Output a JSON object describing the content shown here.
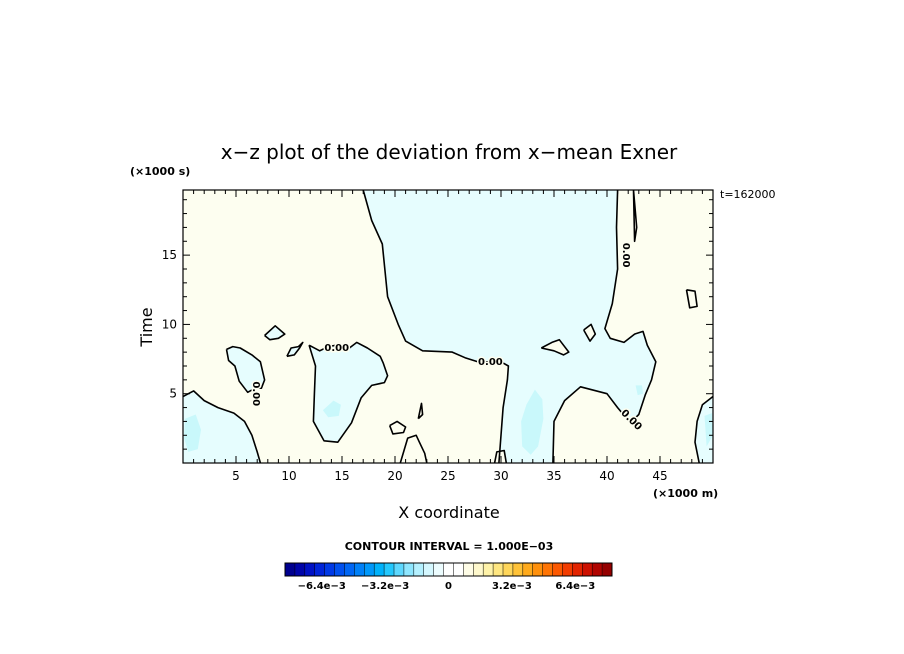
{
  "chart_data": {
    "type": "contour",
    "title": "x−z plot of the deviation from x−mean Exner",
    "xlabel": "X coordinate",
    "ylabel": "Time",
    "x_unit": "(×1000 m)",
    "y_unit": "(×1000 s)",
    "time_annotation": "t=162000",
    "contour_interval_text": "CONTOUR INTERVAL = 1.000E−03",
    "xlim": [
      0,
      50
    ],
    "ylim": [
      0,
      19.7
    ],
    "x_ticks": [
      5,
      10,
      15,
      20,
      25,
      30,
      35,
      40,
      45
    ],
    "x_tick_labels": [
      "5",
      "10",
      "15",
      "20",
      "25",
      "30",
      "35",
      "40",
      "45"
    ],
    "y_ticks": [
      5,
      10,
      15
    ],
    "y_tick_labels": [
      "5",
      "10",
      "15"
    ],
    "contour_labels": [
      {
        "text": "0.00",
        "x": 14.5,
        "y": 8.3,
        "rotate": 0
      },
      {
        "text": "0.00",
        "x": 29.0,
        "y": 7.3,
        "rotate": 0
      },
      {
        "text": "0.00",
        "x": 6.9,
        "y": 5.0,
        "rotate": 90
      },
      {
        "text": "0.00",
        "x": 41.8,
        "y": 15.0,
        "rotate": 90
      },
      {
        "text": "0.00",
        "x": 42.3,
        "y": 3.1,
        "rotate": 45
      }
    ],
    "zero_contours": [
      [
        [
          17.0,
          19.7
        ],
        [
          17.8,
          17.5
        ],
        [
          18.8,
          15.8
        ],
        [
          19.3,
          12.0
        ],
        [
          20.3,
          10.0
        ],
        [
          21.0,
          8.8
        ],
        [
          22.6,
          8.1
        ],
        [
          25.4,
          8.0
        ],
        [
          26.6,
          7.6
        ],
        [
          27.8,
          7.3
        ],
        [
          30.0,
          7.3
        ],
        [
          30.7,
          7.0
        ],
        [
          30.6,
          6.0
        ],
        [
          30.2,
          4.0
        ],
        [
          29.8,
          0
        ]
      ],
      [
        [
          41.0,
          19.7
        ],
        [
          40.9,
          17.0
        ],
        [
          41.0,
          14.0
        ],
        [
          40.5,
          11.5
        ],
        [
          39.8,
          9.7
        ],
        [
          40.3,
          9.0
        ],
        [
          41.6,
          8.7
        ],
        [
          42.6,
          9.3
        ],
        [
          43.4,
          9.5
        ],
        [
          43.8,
          8.5
        ],
        [
          44.6,
          7.3
        ],
        [
          44.2,
          6.0
        ],
        [
          43.6,
          4.9
        ],
        [
          43.0,
          3.5
        ],
        [
          42.2,
          2.9
        ],
        [
          41.0,
          4.0
        ],
        [
          40.0,
          5.0
        ],
        [
          37.5,
          5.5
        ],
        [
          36.0,
          4.5
        ],
        [
          35.0,
          3.0
        ],
        [
          34.9,
          0
        ]
      ],
      [
        [
          0,
          4.8
        ],
        [
          1.0,
          5.2
        ],
        [
          2.0,
          4.5
        ],
        [
          3.3,
          4.0
        ],
        [
          4.8,
          3.6
        ],
        [
          5.8,
          3.0
        ],
        [
          6.5,
          2.0
        ],
        [
          7.0,
          0.8
        ],
        [
          7.3,
          0
        ]
      ],
      [
        [
          4.1,
          8.2
        ],
        [
          4.3,
          7.4
        ],
        [
          4.9,
          7.0
        ],
        [
          5.3,
          5.9
        ],
        [
          6.1,
          5.1
        ],
        [
          6.8,
          5.4
        ],
        [
          7.4,
          5.4
        ],
        [
          7.7,
          6.0
        ],
        [
          7.3,
          7.3
        ],
        [
          6.5,
          7.8
        ],
        [
          5.4,
          8.3
        ],
        [
          4.7,
          8.4
        ],
        [
          4.1,
          8.2
        ]
      ],
      [
        [
          11.9,
          8.5
        ],
        [
          12.5,
          7.0
        ],
        [
          12.4,
          5.0
        ],
        [
          12.3,
          3.0
        ],
        [
          13.3,
          1.6
        ],
        [
          14.6,
          1.5
        ],
        [
          15.9,
          2.9
        ],
        [
          16.8,
          4.7
        ],
        [
          17.8,
          5.6
        ],
        [
          19.0,
          5.8
        ],
        [
          19.3,
          6.3
        ],
        [
          18.9,
          7.2
        ],
        [
          18.6,
          7.7
        ],
        [
          17.4,
          8.3
        ],
        [
          16.4,
          8.7
        ],
        [
          15.7,
          8.3
        ],
        [
          14.5,
          8.5
        ],
        [
          13.7,
          8.4
        ],
        [
          12.9,
          8.1
        ],
        [
          11.9,
          8.5
        ]
      ],
      [
        [
          9.8,
          7.7
        ],
        [
          10.5,
          7.8
        ],
        [
          11.0,
          8.3
        ],
        [
          11.3,
          8.7
        ],
        [
          10.9,
          8.4
        ],
        [
          10.2,
          8.3
        ],
        [
          9.8,
          7.7
        ]
      ],
      [
        [
          7.7,
          9.2
        ],
        [
          8.7,
          9.9
        ],
        [
          9.6,
          9.3
        ],
        [
          9.0,
          9.0
        ],
        [
          8.2,
          8.9
        ],
        [
          7.7,
          9.2
        ]
      ],
      [
        [
          20.5,
          0
        ],
        [
          21.2,
          1.8
        ],
        [
          22.0,
          2.0
        ],
        [
          22.3,
          1.5
        ],
        [
          22.8,
          0.7
        ],
        [
          23.0,
          0
        ]
      ],
      [
        [
          19.5,
          2.7
        ],
        [
          20.2,
          3.0
        ],
        [
          21.0,
          2.6
        ],
        [
          20.8,
          2.2
        ],
        [
          19.8,
          2.1
        ],
        [
          19.5,
          2.7
        ]
      ],
      [
        [
          22.2,
          3.2
        ],
        [
          22.5,
          4.3
        ],
        [
          22.6,
          3.5
        ],
        [
          22.2,
          3.2
        ]
      ],
      [
        [
          42.5,
          19.7
        ],
        [
          42.8,
          17.0
        ],
        [
          42.6,
          16.0
        ],
        [
          42.5,
          19.7
        ]
      ],
      [
        [
          47.5,
          12.5
        ],
        [
          48.3,
          12.4
        ],
        [
          48.5,
          11.3
        ],
        [
          47.8,
          11.2
        ],
        [
          47.5,
          12.5
        ]
      ],
      [
        [
          37.8,
          9.6
        ],
        [
          38.5,
          10.0
        ],
        [
          38.9,
          9.3
        ],
        [
          38.4,
          8.8
        ],
        [
          37.8,
          9.6
        ]
      ],
      [
        [
          33.8,
          8.3
        ],
        [
          34.8,
          8.7
        ],
        [
          35.5,
          8.9
        ],
        [
          36.4,
          8.0
        ],
        [
          35.9,
          7.8
        ],
        [
          35.0,
          8.1
        ],
        [
          33.8,
          8.3
        ]
      ],
      [
        [
          29.4,
          0
        ],
        [
          29.6,
          0.8
        ],
        [
          30.3,
          0.9
        ],
        [
          30.5,
          0
        ]
      ],
      [
        [
          50,
          4.8
        ],
        [
          49.0,
          4.2
        ],
        [
          48.5,
          3.0
        ],
        [
          48.3,
          1.5
        ],
        [
          48.7,
          0
        ]
      ]
    ],
    "shaded_regions": [
      {
        "color": "#e6fdfe",
        "points": [
          [
            17.0,
            19.7
          ],
          [
            17.8,
            17.5
          ],
          [
            18.8,
            15.8
          ],
          [
            19.3,
            12.0
          ],
          [
            20.3,
            10.0
          ],
          [
            21.0,
            8.8
          ],
          [
            22.6,
            8.1
          ],
          [
            25.4,
            8.0
          ],
          [
            26.6,
            7.6
          ],
          [
            27.8,
            7.3
          ],
          [
            30.0,
            7.3
          ],
          [
            30.7,
            7.0
          ],
          [
            30.6,
            6.0
          ],
          [
            30.2,
            4.0
          ],
          [
            29.8,
            0
          ],
          [
            34.9,
            0
          ],
          [
            35.0,
            3.0
          ],
          [
            36.0,
            4.5
          ],
          [
            37.5,
            5.5
          ],
          [
            40.0,
            5.0
          ],
          [
            41.0,
            4.0
          ],
          [
            42.2,
            2.9
          ],
          [
            43.0,
            3.5
          ],
          [
            43.6,
            4.9
          ],
          [
            44.2,
            6.0
          ],
          [
            44.6,
            7.3
          ],
          [
            43.8,
            8.5
          ],
          [
            43.4,
            9.5
          ],
          [
            42.6,
            9.3
          ],
          [
            41.6,
            8.7
          ],
          [
            40.3,
            9.0
          ],
          [
            39.8,
            9.7
          ],
          [
            40.5,
            11.5
          ],
          [
            41.0,
            14.0
          ],
          [
            40.9,
            17.0
          ],
          [
            41.0,
            19.7
          ]
        ]
      },
      {
        "color": "#e6fdfe",
        "points": [
          [
            0,
            4.8
          ],
          [
            1.0,
            5.2
          ],
          [
            2.0,
            4.5
          ],
          [
            3.3,
            4.0
          ],
          [
            4.8,
            3.6
          ],
          [
            5.8,
            3.0
          ],
          [
            6.5,
            2.0
          ],
          [
            7.0,
            0.8
          ],
          [
            7.3,
            0
          ],
          [
            0,
            0
          ]
        ]
      },
      {
        "color": "#e6fdfe",
        "points": [
          [
            4.1,
            8.2
          ],
          [
            4.3,
            7.4
          ],
          [
            4.9,
            7.0
          ],
          [
            5.3,
            5.9
          ],
          [
            6.1,
            5.1
          ],
          [
            6.8,
            5.4
          ],
          [
            7.4,
            5.4
          ],
          [
            7.7,
            6.0
          ],
          [
            7.3,
            7.3
          ],
          [
            6.5,
            7.8
          ],
          [
            5.4,
            8.3
          ],
          [
            4.7,
            8.4
          ]
        ]
      },
      {
        "color": "#e6fdfe",
        "points": [
          [
            11.9,
            8.5
          ],
          [
            12.5,
            7.0
          ],
          [
            12.4,
            5.0
          ],
          [
            12.3,
            3.0
          ],
          [
            13.3,
            1.6
          ],
          [
            14.6,
            1.5
          ],
          [
            15.9,
            2.9
          ],
          [
            16.8,
            4.7
          ],
          [
            17.8,
            5.6
          ],
          [
            19.0,
            5.8
          ],
          [
            19.3,
            6.3
          ],
          [
            18.9,
            7.2
          ],
          [
            18.6,
            7.7
          ],
          [
            17.4,
            8.3
          ],
          [
            16.4,
            8.7
          ],
          [
            15.7,
            8.3
          ],
          [
            14.5,
            8.5
          ],
          [
            13.7,
            8.4
          ],
          [
            12.9,
            8.1
          ]
        ]
      },
      {
        "color": "#e6fdfe",
        "points": [
          [
            9.8,
            7.7
          ],
          [
            10.5,
            7.8
          ],
          [
            11.0,
            8.3
          ],
          [
            11.3,
            8.7
          ],
          [
            10.9,
            8.4
          ],
          [
            10.2,
            8.3
          ]
        ]
      },
      {
        "color": "#e6fdfe",
        "points": [
          [
            7.7,
            9.2
          ],
          [
            8.7,
            9.9
          ],
          [
            9.6,
            9.3
          ],
          [
            9.0,
            9.0
          ],
          [
            8.2,
            8.9
          ]
        ]
      },
      {
        "color": "#e6fdfe",
        "points": [
          [
            50,
            4.8
          ],
          [
            49.0,
            4.2
          ],
          [
            48.5,
            3.0
          ],
          [
            48.3,
            1.5
          ],
          [
            48.7,
            0
          ],
          [
            50,
            0
          ]
        ]
      },
      {
        "color": "#fdfef0",
        "points": [
          [
            20.5,
            0
          ],
          [
            21.2,
            1.8
          ],
          [
            22.0,
            2.0
          ],
          [
            22.3,
            1.5
          ],
          [
            22.8,
            0.7
          ],
          [
            23.0,
            0
          ]
        ]
      },
      {
        "color": "#fdfef0",
        "points": [
          [
            29.4,
            0
          ],
          [
            29.6,
            0.8
          ],
          [
            30.3,
            0.9
          ],
          [
            30.5,
            0
          ]
        ]
      },
      {
        "color": "#fdfef0",
        "points": [
          [
            33.8,
            8.3
          ],
          [
            34.8,
            8.7
          ],
          [
            35.5,
            8.9
          ],
          [
            36.4,
            8.0
          ],
          [
            35.9,
            7.8
          ],
          [
            35.0,
            8.1
          ]
        ]
      },
      {
        "color": "#fdfef0",
        "points": [
          [
            37.8,
            9.6
          ],
          [
            38.5,
            10.0
          ],
          [
            38.9,
            9.3
          ],
          [
            38.4,
            8.8
          ]
        ]
      },
      {
        "color": "#c9f8fb",
        "points": [
          [
            32.4,
            4.2
          ],
          [
            33.2,
            5.3
          ],
          [
            33.9,
            4.6
          ],
          [
            34.0,
            3.2
          ],
          [
            33.5,
            1.2
          ],
          [
            32.8,
            0.6
          ],
          [
            32.0,
            1.2
          ],
          [
            31.9,
            3.0
          ]
        ]
      },
      {
        "color": "#c9f8fb",
        "points": [
          [
            0.2,
            3.2
          ],
          [
            1.2,
            3.5
          ],
          [
            1.7,
            2.4
          ],
          [
            1.4,
            1.0
          ],
          [
            0.5,
            0.8
          ],
          [
            0.1,
            1.8
          ]
        ]
      },
      {
        "color": "#c9f8fb",
        "points": [
          [
            13.2,
            3.8
          ],
          [
            14.2,
            4.5
          ],
          [
            14.9,
            4.2
          ],
          [
            14.7,
            3.4
          ],
          [
            13.7,
            3.3
          ]
        ]
      },
      {
        "color": "#c9f8fb",
        "points": [
          [
            49.2,
            3.4
          ],
          [
            49.9,
            3.6
          ],
          [
            50,
            2.0
          ],
          [
            49.4,
            1.2
          ]
        ]
      },
      {
        "color": "#c9f8fb",
        "points": [
          [
            42.7,
            5.6
          ],
          [
            43.3,
            5.6
          ],
          [
            43.4,
            5.0
          ],
          [
            42.9,
            4.9
          ]
        ]
      }
    ],
    "colorbar": {
      "colors": [
        "#00008f",
        "#0004a9",
        "#0011c5",
        "#0024d9",
        "#0039e6",
        "#0050ef",
        "#0066f4",
        "#0080f7",
        "#0098fa",
        "#00b2fb",
        "#24c8fd",
        "#5ed8fe",
        "#8ee6fe",
        "#b4f0fe",
        "#d4f7fe",
        "#ecfcfe",
        "#ffffff",
        "#ffffff",
        "#fefce6",
        "#fef8cc",
        "#fef2a8",
        "#fee680",
        "#fed65a",
        "#fec238",
        "#feaa1c",
        "#fe900c",
        "#fe7404",
        "#fc5800",
        "#f23c00",
        "#e22400",
        "#cc1000",
        "#b00400",
        "#940000"
      ],
      "tick_labels": [
        "−6.4e−3",
        "−3.2e−3",
        "0",
        "3.2e−3",
        "6.4e−3"
      ],
      "tick_values": [
        -6.4,
        -3.2,
        0,
        3.2,
        6.4
      ],
      "range": [
        -8.25,
        8.25
      ]
    },
    "background_color": "#fdfef0"
  }
}
